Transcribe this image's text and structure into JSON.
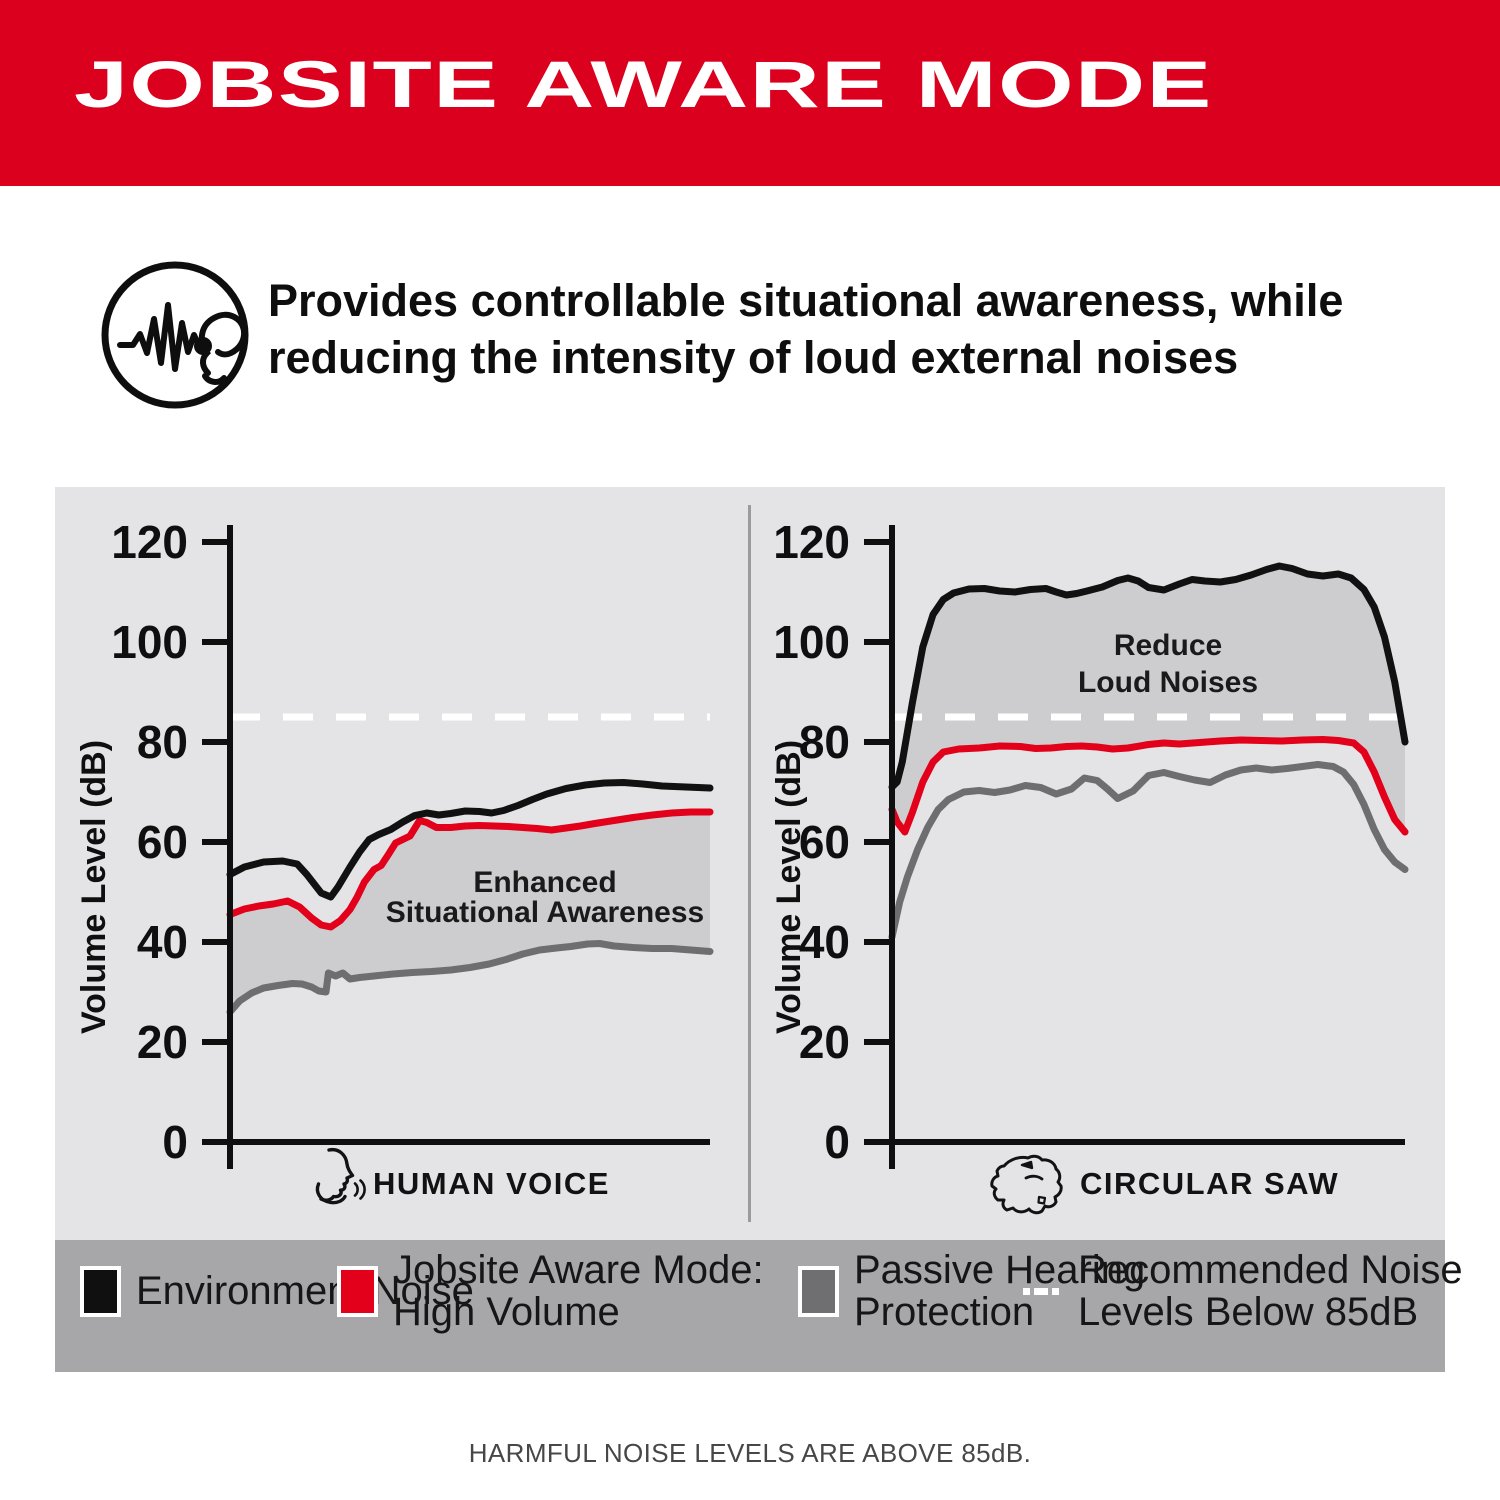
{
  "colors": {
    "header_red": "#DB001E",
    "line_red": "#E3001B",
    "line_black": "#111111",
    "line_gray": "#6E6E70",
    "panel_bg": "#E4E4E6",
    "area_fill": "#CDCDCF",
    "legend_bar_bg": "#A7A7A9",
    "dashed_white": "#FFFFFF"
  },
  "header": {
    "title": "JOBSITE AWARE MODE"
  },
  "intro": {
    "icon": "ear-waveform-icon",
    "line1": "Provides controllable situational awareness, while",
    "line2": "reducing the intensity of loud external noises"
  },
  "chart_data": [
    {
      "type": "line",
      "title": "HUMAN VOICE",
      "xlabel": "HUMAN VOICE",
      "xlabel_icon": "speaking-face-icon",
      "ylabel": "Volume Level (dB)",
      "ylim": [
        0,
        120
      ],
      "yticks": [
        0,
        20,
        40,
        60,
        80,
        100,
        120
      ],
      "grid": false,
      "reference_line": {
        "value": 85,
        "style": "dashed-white",
        "label": "Recommended Noise Levels Below 85dB"
      },
      "annotation": {
        "lines": [
          "Enhanced",
          "Situational Awareness"
        ]
      },
      "fill_between": [
        "Jobsite Aware Mode: High Volume",
        "Passive Hearing Protection"
      ],
      "series": [
        {
          "name": "Environment Noise",
          "color": "#111111",
          "points": [
            [
              0,
              53.5
            ],
            [
              0.03,
              55
            ],
            [
              0.07,
              56
            ],
            [
              0.11,
              56.2
            ],
            [
              0.14,
              55.6
            ],
            [
              0.16,
              53.5
            ],
            [
              0.19,
              49.8
            ],
            [
              0.21,
              49
            ],
            [
              0.225,
              51
            ],
            [
              0.25,
              55
            ],
            [
              0.27,
              58
            ],
            [
              0.29,
              60.5
            ],
            [
              0.31,
              61.5
            ],
            [
              0.335,
              62.5
            ],
            [
              0.36,
              64
            ],
            [
              0.385,
              65.3
            ],
            [
              0.41,
              65.8
            ],
            [
              0.435,
              65.4
            ],
            [
              0.46,
              65.7
            ],
            [
              0.49,
              66.2
            ],
            [
              0.52,
              66.1
            ],
            [
              0.545,
              65.8
            ],
            [
              0.57,
              66.3
            ],
            [
              0.6,
              67.3
            ],
            [
              0.63,
              68.5
            ],
            [
              0.66,
              69.6
            ],
            [
              0.7,
              70.7
            ],
            [
              0.74,
              71.4
            ],
            [
              0.78,
              71.8
            ],
            [
              0.82,
              71.9
            ],
            [
              0.86,
              71.6
            ],
            [
              0.9,
              71.2
            ],
            [
              0.95,
              71
            ],
            [
              1,
              70.8
            ]
          ]
        },
        {
          "name": "Jobsite Aware Mode: High Volume",
          "color": "#E3001B",
          "points": [
            [
              0,
              45.5
            ],
            [
              0.03,
              46.6
            ],
            [
              0.06,
              47.2
            ],
            [
              0.09,
              47.6
            ],
            [
              0.12,
              48.2
            ],
            [
              0.145,
              47
            ],
            [
              0.17,
              44.8
            ],
            [
              0.19,
              43.4
            ],
            [
              0.21,
              43
            ],
            [
              0.23,
              44.3
            ],
            [
              0.25,
              46.5
            ],
            [
              0.265,
              49
            ],
            [
              0.28,
              52
            ],
            [
              0.3,
              54.5
            ],
            [
              0.315,
              55.3
            ],
            [
              0.33,
              57.5
            ],
            [
              0.345,
              59.8
            ],
            [
              0.36,
              60.5
            ],
            [
              0.375,
              61.2
            ],
            [
              0.395,
              64.3
            ],
            [
              0.41,
              63.9
            ],
            [
              0.43,
              62.9
            ],
            [
              0.46,
              62.9
            ],
            [
              0.49,
              63.2
            ],
            [
              0.52,
              63.3
            ],
            [
              0.55,
              63.2
            ],
            [
              0.58,
              63.1
            ],
            [
              0.61,
              62.9
            ],
            [
              0.64,
              62.7
            ],
            [
              0.67,
              62.4
            ],
            [
              0.7,
              62.8
            ],
            [
              0.73,
              63.2
            ],
            [
              0.76,
              63.7
            ],
            [
              0.8,
              64.3
            ],
            [
              0.84,
              64.9
            ],
            [
              0.88,
              65.4
            ],
            [
              0.92,
              65.8
            ],
            [
              0.96,
              66
            ],
            [
              1,
              66
            ]
          ]
        },
        {
          "name": "Passive Hearing Protection",
          "color": "#6E6E70",
          "points": [
            [
              0,
              26
            ],
            [
              0.02,
              28.2
            ],
            [
              0.045,
              29.8
            ],
            [
              0.07,
              30.8
            ],
            [
              0.1,
              31.3
            ],
            [
              0.13,
              31.7
            ],
            [
              0.15,
              31.6
            ],
            [
              0.17,
              31
            ],
            [
              0.185,
              30.2
            ],
            [
              0.2,
              30
            ],
            [
              0.205,
              33.8
            ],
            [
              0.22,
              33.2
            ],
            [
              0.235,
              33.8
            ],
            [
              0.25,
              32.6
            ],
            [
              0.27,
              32.9
            ],
            [
              0.3,
              33.2
            ],
            [
              0.34,
              33.6
            ],
            [
              0.38,
              33.9
            ],
            [
              0.42,
              34.1
            ],
            [
              0.46,
              34.4
            ],
            [
              0.5,
              34.9
            ],
            [
              0.54,
              35.6
            ],
            [
              0.575,
              36.5
            ],
            [
              0.61,
              37.6
            ],
            [
              0.645,
              38.4
            ],
            [
              0.68,
              38.8
            ],
            [
              0.71,
              39.1
            ],
            [
              0.745,
              39.6
            ],
            [
              0.77,
              39.7
            ],
            [
              0.8,
              39.2
            ],
            [
              0.84,
              38.9
            ],
            [
              0.88,
              38.7
            ],
            [
              0.92,
              38.7
            ],
            [
              0.96,
              38.4
            ],
            [
              1,
              38.1
            ]
          ]
        }
      ]
    },
    {
      "type": "line",
      "title": "CIRCULAR SAW",
      "xlabel": "CIRCULAR SAW",
      "xlabel_icon": "circular-saw-icon",
      "ylabel": "Volume Level (dB)",
      "ylim": [
        0,
        120
      ],
      "yticks": [
        0,
        20,
        40,
        60,
        80,
        100,
        120
      ],
      "grid": false,
      "reference_line": {
        "value": 85,
        "style": "dashed-white",
        "label": "Recommended Noise Levels Below 85dB"
      },
      "annotation": {
        "lines": [
          "Reduce",
          "Loud Noises"
        ]
      },
      "fill_between": [
        "Environment Noise",
        "Jobsite Aware Mode: High Volume"
      ],
      "series": [
        {
          "name": "Environment Noise",
          "color": "#111111",
          "points": [
            [
              0,
              71
            ],
            [
              0.01,
              72
            ],
            [
              0.02,
              76
            ],
            [
              0.04,
              88
            ],
            [
              0.06,
              99
            ],
            [
              0.08,
              105.5
            ],
            [
              0.1,
              108.5
            ],
            [
              0.12,
              109.8
            ],
            [
              0.15,
              110.6
            ],
            [
              0.18,
              110.7
            ],
            [
              0.21,
              110.2
            ],
            [
              0.24,
              110
            ],
            [
              0.27,
              110.5
            ],
            [
              0.3,
              110.7
            ],
            [
              0.32,
              110
            ],
            [
              0.34,
              109.4
            ],
            [
              0.36,
              109.7
            ],
            [
              0.38,
              110.2
            ],
            [
              0.41,
              111
            ],
            [
              0.44,
              112.3
            ],
            [
              0.46,
              112.8
            ],
            [
              0.48,
              112.2
            ],
            [
              0.5,
              110.9
            ],
            [
              0.53,
              110.4
            ],
            [
              0.56,
              111.6
            ],
            [
              0.585,
              112.5
            ],
            [
              0.61,
              112.2
            ],
            [
              0.64,
              112
            ],
            [
              0.67,
              112.5
            ],
            [
              0.7,
              113.4
            ],
            [
              0.73,
              114.5
            ],
            [
              0.755,
              115.2
            ],
            [
              0.78,
              114.7
            ],
            [
              0.81,
              113.6
            ],
            [
              0.84,
              113.2
            ],
            [
              0.87,
              113.6
            ],
            [
              0.895,
              112.8
            ],
            [
              0.92,
              110.5
            ],
            [
              0.94,
              107
            ],
            [
              0.96,
              101
            ],
            [
              0.98,
              92
            ],
            [
              0.995,
              83
            ],
            [
              1,
              80
            ]
          ]
        },
        {
          "name": "Jobsite Aware Mode: High Volume",
          "color": "#E3001B",
          "points": [
            [
              0,
              66.5
            ],
            [
              0.01,
              64
            ],
            [
              0.025,
              62
            ],
            [
              0.04,
              66
            ],
            [
              0.06,
              72
            ],
            [
              0.08,
              76
            ],
            [
              0.1,
              78
            ],
            [
              0.13,
              78.6
            ],
            [
              0.17,
              78.8
            ],
            [
              0.21,
              79.2
            ],
            [
              0.25,
              79.1
            ],
            [
              0.28,
              78.7
            ],
            [
              0.31,
              78.8
            ],
            [
              0.34,
              79.1
            ],
            [
              0.37,
              79.2
            ],
            [
              0.4,
              79
            ],
            [
              0.43,
              78.6
            ],
            [
              0.46,
              78.8
            ],
            [
              0.5,
              79.5
            ],
            [
              0.53,
              79.8
            ],
            [
              0.56,
              79.6
            ],
            [
              0.6,
              79.9
            ],
            [
              0.64,
              80.2
            ],
            [
              0.68,
              80.4
            ],
            [
              0.72,
              80.3
            ],
            [
              0.76,
              80.2
            ],
            [
              0.8,
              80.4
            ],
            [
              0.84,
              80.5
            ],
            [
              0.87,
              80.3
            ],
            [
              0.9,
              79.8
            ],
            [
              0.92,
              78
            ],
            [
              0.94,
              74
            ],
            [
              0.96,
              69
            ],
            [
              0.98,
              64.5
            ],
            [
              1,
              62
            ]
          ]
        },
        {
          "name": "Passive Hearing Protection",
          "color": "#6E6E70",
          "points": [
            [
              0,
              41
            ],
            [
              0.015,
              48
            ],
            [
              0.03,
              53
            ],
            [
              0.05,
              58.5
            ],
            [
              0.07,
              63
            ],
            [
              0.09,
              66.5
            ],
            [
              0.11,
              68.5
            ],
            [
              0.14,
              70
            ],
            [
              0.17,
              70.3
            ],
            [
              0.2,
              69.9
            ],
            [
              0.23,
              70.4
            ],
            [
              0.26,
              71.3
            ],
            [
              0.29,
              70.9
            ],
            [
              0.32,
              69.6
            ],
            [
              0.35,
              70.6
            ],
            [
              0.375,
              72.8
            ],
            [
              0.4,
              72.3
            ],
            [
              0.42,
              70.6
            ],
            [
              0.44,
              68.7
            ],
            [
              0.47,
              70.2
            ],
            [
              0.5,
              73.3
            ],
            [
              0.53,
              73.9
            ],
            [
              0.56,
              73.1
            ],
            [
              0.59,
              72.4
            ],
            [
              0.62,
              71.9
            ],
            [
              0.65,
              73.4
            ],
            [
              0.68,
              74.4
            ],
            [
              0.71,
              74.8
            ],
            [
              0.74,
              74.4
            ],
            [
              0.77,
              74.7
            ],
            [
              0.8,
              75.1
            ],
            [
              0.83,
              75.5
            ],
            [
              0.86,
              75.1
            ],
            [
              0.88,
              74
            ],
            [
              0.9,
              71.5
            ],
            [
              0.92,
              67.5
            ],
            [
              0.94,
              62.5
            ],
            [
              0.96,
              58.5
            ],
            [
              0.98,
              56
            ],
            [
              1,
              54.5
            ]
          ]
        }
      ]
    }
  ],
  "legend": {
    "items": [
      {
        "swatch": "black-square",
        "color": "#101010",
        "lines": [
          "Environment Noise"
        ]
      },
      {
        "swatch": "red-square",
        "color": "#E3001B",
        "lines": [
          "Jobsite Aware Mode:",
          "High Volume"
        ]
      },
      {
        "swatch": "gray-square",
        "color": "#6F6F71",
        "lines": [
          "Passive Hearing",
          "Protection"
        ]
      },
      {
        "swatch": "white-dashed-line",
        "color": "#FFFFFF",
        "lines": [
          "Recommended Noise",
          "Levels Below 85dB"
        ]
      }
    ]
  },
  "footer": {
    "text": "HARMFUL NOISE LEVELS ARE ABOVE 85dB."
  }
}
